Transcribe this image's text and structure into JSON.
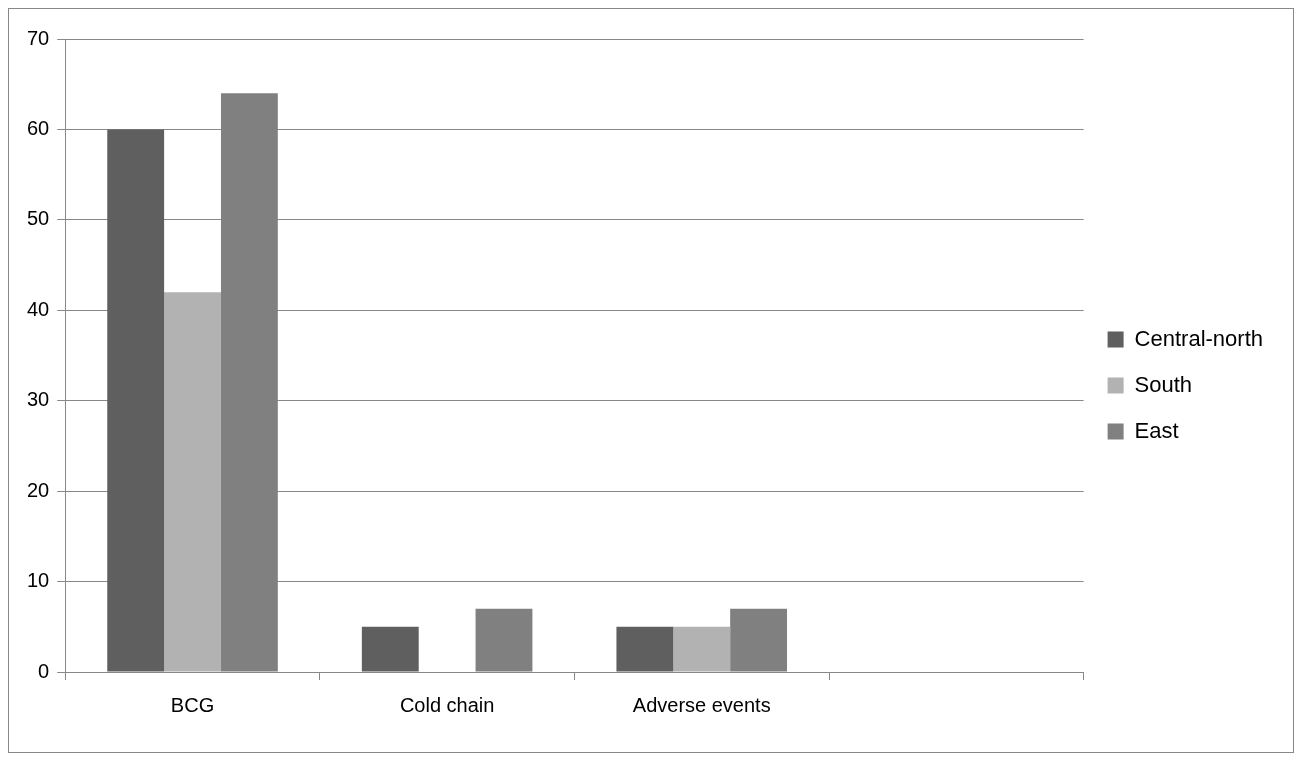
{
  "chart_data": {
    "type": "bar",
    "categories": [
      "BCG",
      "Cold chain",
      "Adverse events",
      null
    ],
    "series": [
      {
        "name": "Central-north",
        "color": "#5f5f5f",
        "values": [
          60,
          5,
          5,
          null
        ]
      },
      {
        "name": "South",
        "color": "#b2b2b2",
        "values": [
          42,
          null,
          5,
          null
        ]
      },
      {
        "name": "East",
        "color": "#808080",
        "values": [
          64,
          7,
          7,
          null
        ]
      }
    ],
    "ylim": [
      0,
      70
    ],
    "yticks": [
      0,
      10,
      20,
      30,
      40,
      50,
      60,
      70
    ],
    "grid": "y",
    "legend": "right"
  }
}
